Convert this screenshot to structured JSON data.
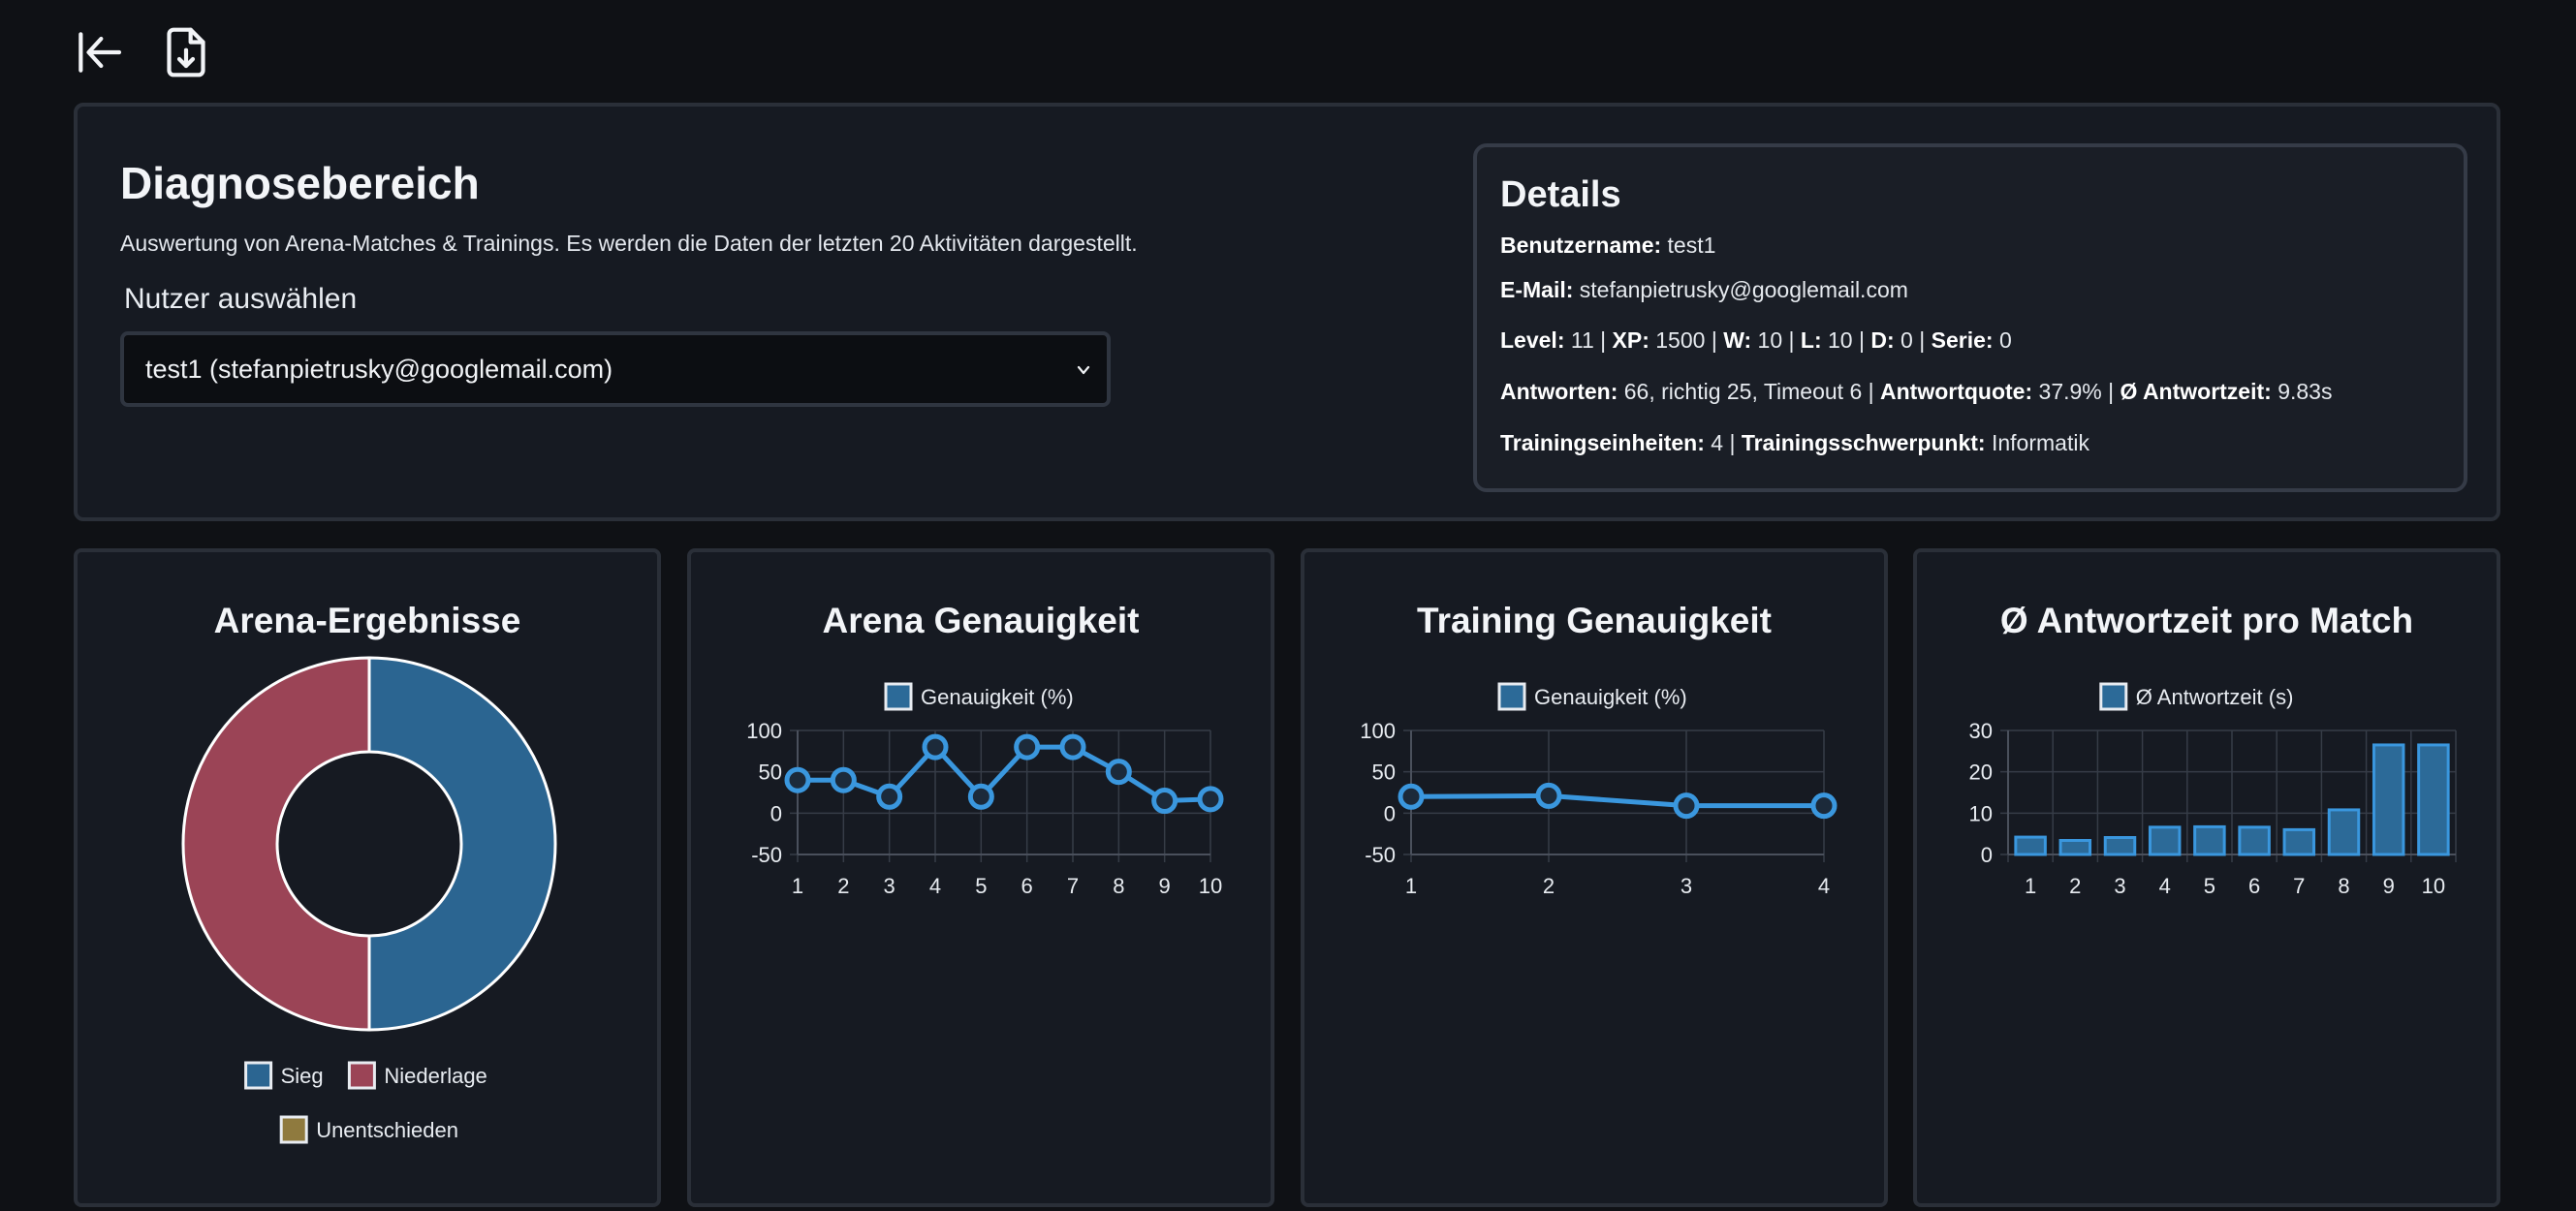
{
  "toolbar": {
    "back_icon": "arrow-left-to-bar-icon",
    "download_icon": "file-download-icon"
  },
  "header": {
    "title": "Diagnosebereich",
    "description": "Auswertung von Arena-Matches & Trainings. Es werden die Daten der letzten 20 Aktivitäten dargestellt.",
    "select_label": "Nutzer auswählen",
    "selected_user": "test1 (stefanpietrusky@googlemail.com)"
  },
  "details": {
    "title": "Details",
    "username_label": "Benutzername:",
    "username": "test1",
    "email_label": "E-Mail:",
    "email": "stefanpietrusky@googlemail.com",
    "level_label": "Level:",
    "level": "11",
    "xp_label": "XP:",
    "xp": "1500",
    "w_label": "W:",
    "w": "10",
    "l_label": "L:",
    "l": "10",
    "d_label": "D:",
    "d": "0",
    "serie_label": "Serie:",
    "serie": "0",
    "answers_label": "Antworten:",
    "answers": "66, richtig 25, Timeout 6",
    "quote_label": "Antwortquote:",
    "quote": "37.9%",
    "avg_time_label": "Ø Antwortzeit:",
    "avg_time": "9.83s",
    "training_units_label": "Trainingseinheiten:",
    "training_units": "4",
    "training_focus_label": "Trainingsschwerpunkt:",
    "training_focus": "Informatik"
  },
  "colors": {
    "blue": "#2b6591",
    "red": "#9b4456",
    "olive": "#8f7a3e",
    "line": "#3a97de",
    "bar": "#2c6a98",
    "grid": "#363c47",
    "axis": "#4a505c"
  },
  "chart_data": [
    {
      "type": "pie",
      "title": "Arena-Ergebnisse",
      "labels": [
        "Sieg",
        "Niederlage",
        "Unentschieden"
      ],
      "values": [
        10,
        10,
        0
      ],
      "colors": [
        "#2b6591",
        "#9b4456",
        "#8f7a3e"
      ]
    },
    {
      "type": "line",
      "title": "Arena Genauigkeit",
      "legend": "Genauigkeit (%)",
      "x": [
        "1",
        "2",
        "3",
        "4",
        "5",
        "6",
        "7",
        "8",
        "9",
        "10"
      ],
      "values": [
        40,
        40,
        20,
        80,
        20,
        80,
        80,
        50,
        15,
        17
      ],
      "ylim": [
        -50,
        100
      ],
      "yticks": [
        "100",
        "50",
        "0",
        "-50"
      ]
    },
    {
      "type": "line",
      "title": "Training Genauigkeit",
      "legend": "Genauigkeit (%)",
      "x": [
        "1",
        "2",
        "3",
        "4"
      ],
      "values": [
        20,
        21,
        9,
        9
      ],
      "ylim": [
        -50,
        100
      ],
      "yticks": [
        "100",
        "50",
        "0",
        "-50"
      ]
    },
    {
      "type": "bar",
      "title": "Ø Antwortzeit pro Match",
      "legend": "Ø Antwortzeit (s)",
      "categories": [
        "1",
        "2",
        "3",
        "4",
        "5",
        "6",
        "7",
        "8",
        "9",
        "10"
      ],
      "values": [
        4.2,
        3.4,
        4.1,
        6.6,
        6.7,
        6.6,
        6.0,
        10.8,
        26.5,
        26.5
      ],
      "ylim": [
        0,
        30
      ],
      "yticks": [
        "30",
        "20",
        "10",
        "0"
      ]
    }
  ]
}
